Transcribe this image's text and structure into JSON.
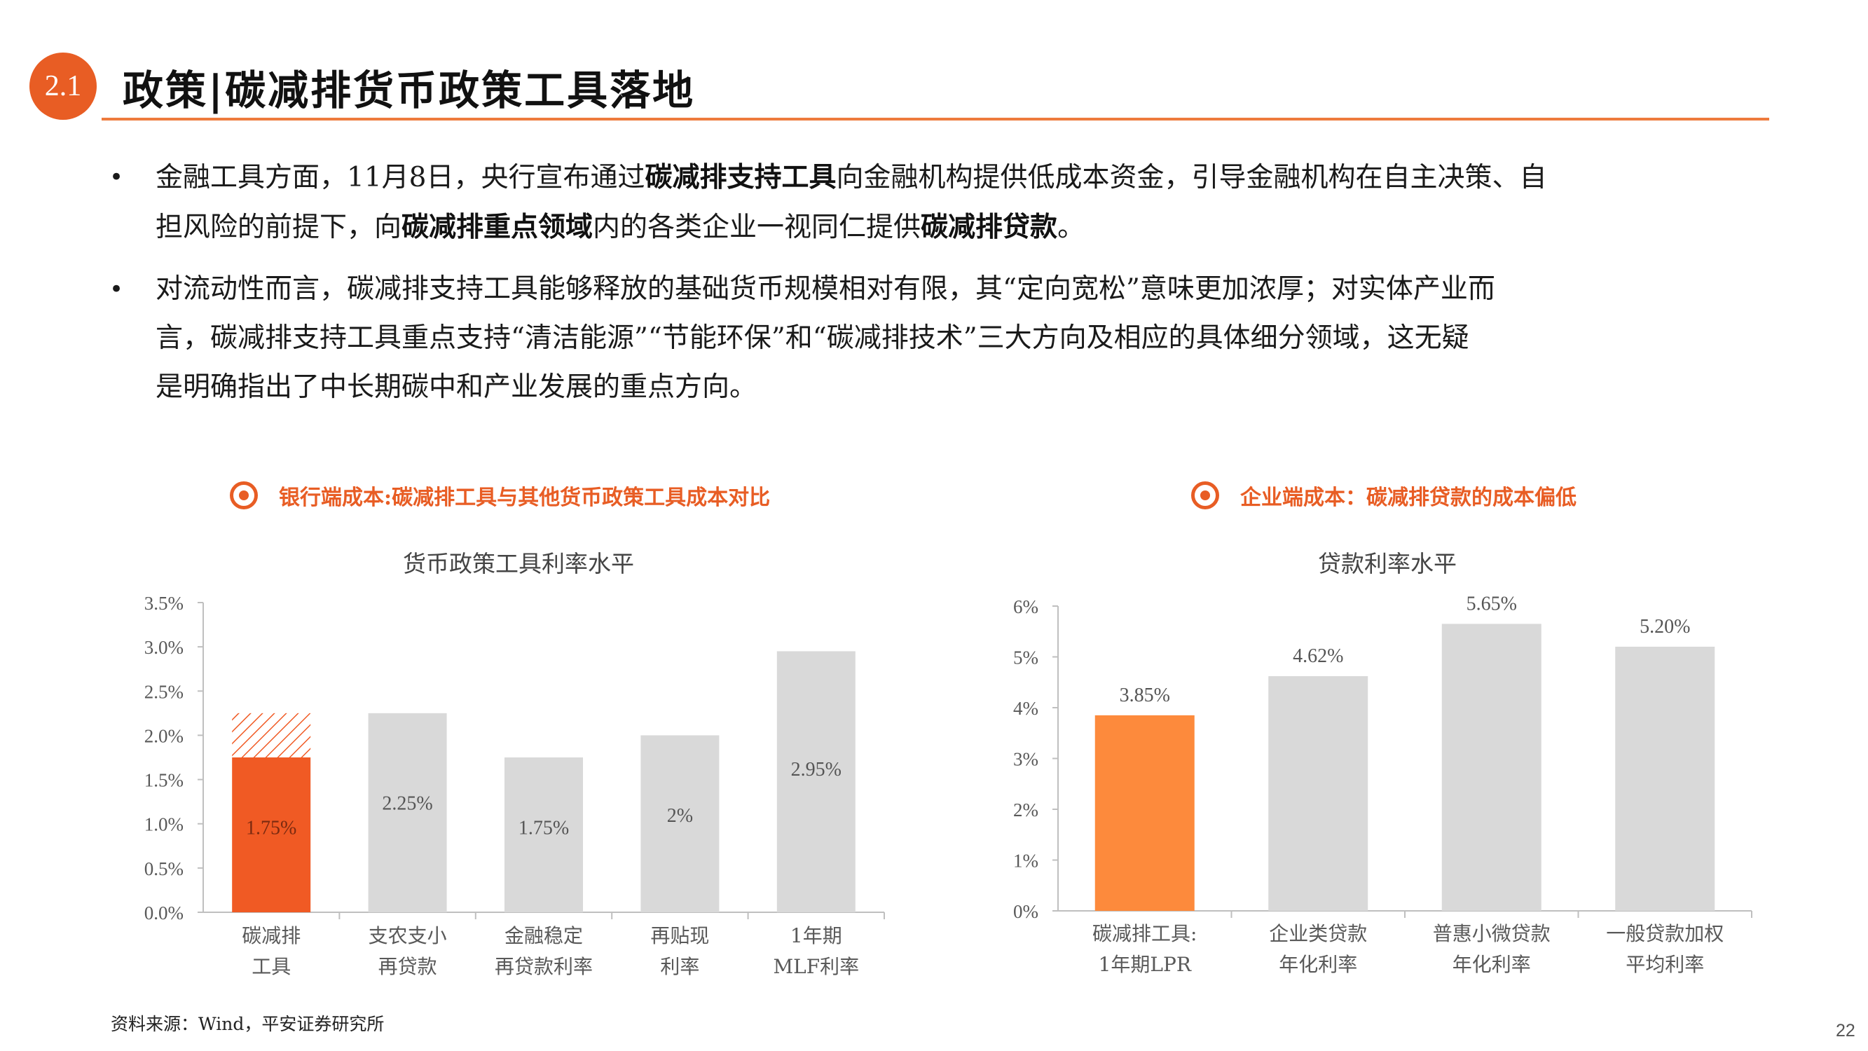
{
  "header": {
    "section_number": "2.1",
    "title": "政策|碳减排货币政策工具落地"
  },
  "bullets": [
    {
      "lines": [
        [
          {
            "t": "金融工具方面，11月8日，央行宣布通过",
            "b": false
          },
          {
            "t": "碳减排支持工具",
            "b": true
          },
          {
            "t": "向金融机构提供低成本资金，引导金融机构在自主决策、自",
            "b": false
          }
        ],
        [
          {
            "t": "担风险的前提下，向",
            "b": false
          },
          {
            "t": "碳减排重点领域",
            "b": true
          },
          {
            "t": "内的各类企业一视同仁提供",
            "b": false
          },
          {
            "t": "碳减排贷款",
            "b": true
          },
          {
            "t": "。",
            "b": false
          }
        ]
      ]
    },
    {
      "lines": [
        [
          {
            "t": "对流动性而言，碳减排支持工具能够释放的基础货币规模相对有限，其“定向宽松”意味更加浓厚；对实体产业而",
            "b": false
          }
        ],
        [
          {
            "t": "言，碳减排支持工具重点支持“清洁能源”“节能环保”和“碳减排技术”三大方向及相应的具体细分领域，这无疑",
            "b": false
          }
        ],
        [
          {
            "t": "是明确指出了中长期碳中和产业发展的重点方向。",
            "b": false
          }
        ]
      ]
    }
  ],
  "panels": {
    "left_heading": "银行端成本:碳减排工具与其他货币政策工具成本对比",
    "right_heading": "企业端成本：碳减排贷款的成本偏低",
    "icon": "target-icon"
  },
  "colors": {
    "accent": "#e85d24",
    "highlight_bar": "#f05a24",
    "orange_bar": "#fd8a3c",
    "gray_bar": "#d9d9d9",
    "axis": "#bfbfbf",
    "text": "#595959"
  },
  "chart_data": [
    {
      "type": "bar",
      "title": "货币政策工具利率水平",
      "categories": [
        [
          "碳减排",
          "工具"
        ],
        [
          "支农支小",
          "再贷款"
        ],
        [
          "金融稳定",
          "再贷款利率"
        ],
        [
          "再贴现",
          "利率"
        ],
        [
          "1年期",
          "MLF利率"
        ]
      ],
      "values": [
        1.75,
        2.25,
        1.75,
        2.0,
        2.95
      ],
      "data_labels": [
        "1.75%",
        "2.25%",
        "1.75%",
        "2%",
        "2.95%"
      ],
      "hatched_extension_to": 2.25,
      "highlight_index": 0,
      "yticks": [
        "0.0%",
        "0.5%",
        "1.0%",
        "1.5%",
        "2.0%",
        "2.5%",
        "3.0%",
        "3.5%"
      ],
      "ylim": [
        0,
        3.5
      ],
      "label_position": "inside",
      "grid": false
    },
    {
      "type": "bar",
      "title": "贷款利率水平",
      "categories": [
        [
          "碳减排工具:",
          "1年期LPR"
        ],
        [
          "企业类贷款",
          "年化利率"
        ],
        [
          "普惠小微贷款",
          "年化利率"
        ],
        [
          "一般贷款加权",
          "平均利率"
        ]
      ],
      "values": [
        3.85,
        4.62,
        5.65,
        5.2
      ],
      "data_labels": [
        "3.85%",
        "4.62%",
        "5.65%",
        "5.20%"
      ],
      "highlight_index": 0,
      "yticks": [
        "0%",
        "1%",
        "2%",
        "3%",
        "4%",
        "5%",
        "6%"
      ],
      "ylim": [
        0,
        6
      ],
      "label_position": "above",
      "grid": false
    }
  ],
  "footer": {
    "source": "资料来源：Wind，平安证券研究所",
    "page_number": "22"
  }
}
